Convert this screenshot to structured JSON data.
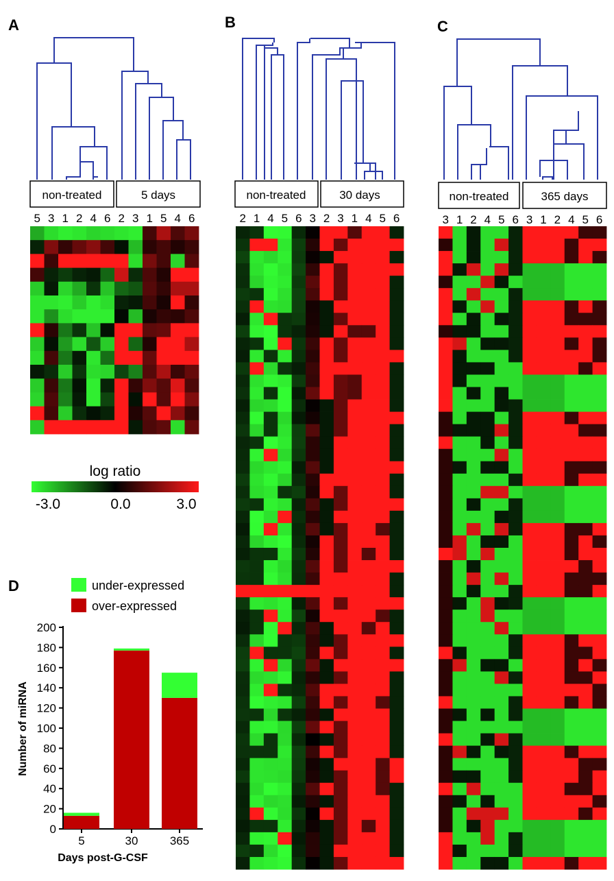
{
  "panel_letters": {
    "a": "A",
    "b": "B",
    "c": "C",
    "d": "D"
  },
  "colors": {
    "dendrogram": "#2a3aa8",
    "panel_letter": "#2a8a8c",
    "heat_low": "#33ff33",
    "heat_mid": "#000000",
    "heat_high": "#ff1a1a",
    "bar_over": "#c00000",
    "bar_under": "#33ff33"
  },
  "panelA": {
    "group_left": "non-treated",
    "group_right": "5 days",
    "columns": [
      "5",
      "3",
      "1",
      "2",
      "4",
      "6",
      "2",
      "3",
      "1",
      "5",
      "4",
      "6"
    ]
  },
  "panelB": {
    "group_left": "non-treated",
    "group_right": "30 days",
    "columns": [
      "2",
      "1",
      "4",
      "5",
      "6",
      "3",
      "2",
      "3",
      "1",
      "4",
      "5",
      "6"
    ]
  },
  "panelC": {
    "group_left": "non-treated",
    "group_right": "365 days",
    "columns": [
      "3",
      "1",
      "2",
      "4",
      "5",
      "6",
      "3",
      "1",
      "2",
      "4",
      "5",
      "6"
    ]
  },
  "legend": {
    "title": "log ratio",
    "min_label": "-3.0",
    "mid_label": "0.0",
    "max_label": "3.0",
    "min": -3.0,
    "max": 3.0
  },
  "chart_data": [
    {
      "type": "heatmap",
      "title": "A",
      "columns": [
        "5",
        "3",
        "1",
        "2",
        "4",
        "6",
        "2",
        "3",
        "1",
        "5",
        "4",
        "6"
      ],
      "value_range": [
        -3.0,
        3.0
      ],
      "values": [
        [
          -2.0,
          -2.6,
          -2.8,
          -2.7,
          -2.5,
          -2.6,
          -2.7,
          -2.8,
          0.8,
          2.0,
          0.9,
          1.4
        ],
        [
          -0.4,
          1.5,
          0.6,
          1.2,
          1.6,
          0.8,
          -0.2,
          -2.2,
          0.5,
          0.8,
          0.4,
          0.7
        ],
        [
          3.0,
          0.7,
          3.0,
          3.0,
          3.0,
          3.0,
          3.0,
          -2.6,
          1.4,
          0.8,
          -2.5,
          1.0
        ],
        [
          0.8,
          -0.4,
          -0.7,
          -0.4,
          -0.3,
          -1.2,
          2.4,
          -0.5,
          0.9,
          0.4,
          3.0,
          3.0
        ],
        [
          -2.4,
          -0.3,
          -2.5,
          -2.0,
          -0.6,
          -2.3,
          -1.2,
          -1.0,
          1.0,
          0.6,
          2.0,
          2.0
        ],
        [
          -2.7,
          -2.7,
          -2.8,
          -2.4,
          -2.8,
          -2.6,
          -0.4,
          -0.3,
          0.8,
          0.3,
          3.0,
          0.6
        ],
        [
          -2.7,
          -1.7,
          -2.6,
          -2.8,
          -2.8,
          -2.8,
          -0.1,
          -2.2,
          0.3,
          0.6,
          0.5,
          0.9
        ],
        [
          3.0,
          0.5,
          -1.4,
          -0.6,
          -2.3,
          -0.2,
          3.0,
          3.0,
          1.1,
          1.2,
          3.0,
          3.0
        ],
        [
          -2.4,
          -0.2,
          -1.8,
          -2.6,
          -1.0,
          -2.4,
          3.0,
          -1.2,
          0.4,
          3.0,
          3.0,
          2.0
        ],
        [
          -2.6,
          0.8,
          -1.4,
          -0.3,
          -2.7,
          -1.3,
          3.0,
          3.0,
          1.2,
          3.0,
          3.0,
          3.0
        ],
        [
          -0.3,
          -0.5,
          -2.4,
          -0.6,
          -2.6,
          -2.5,
          -0.8,
          -1.5,
          1.0,
          2.0,
          0.7,
          1.2
        ],
        [
          -2.4,
          0.7,
          -1.4,
          -0.2,
          -2.8,
          -0.4,
          3.0,
          0.6,
          1.5,
          1.0,
          2.6,
          0.9
        ],
        [
          -2.5,
          0.9,
          -1.5,
          -0.3,
          -2.8,
          -0.8,
          3.0,
          -0.2,
          3.0,
          1.0,
          3.0,
          1.5
        ],
        [
          3.0,
          0.8,
          -2.4,
          -0.5,
          -0.2,
          -0.4,
          3.0,
          0.4,
          1.0,
          3.0,
          1.6,
          0.7
        ],
        [
          -2.4,
          3.0,
          3.0,
          3.0,
          3.0,
          3.0,
          3.0,
          -0.3,
          0.9,
          1.1,
          -2.6,
          1.2
        ]
      ]
    },
    {
      "type": "heatmap",
      "title": "B",
      "columns": [
        "2",
        "1",
        "4",
        "5",
        "6",
        "3",
        "2",
        "3",
        "1",
        "4",
        "5",
        "6"
      ],
      "value_range": [
        -3.0,
        3.0
      ],
      "row_pattern": "non-treated samples largely green/black; 30-day samples largely red"
    },
    {
      "type": "heatmap",
      "title": "C",
      "columns": [
        "3",
        "1",
        "2",
        "4",
        "5",
        "6",
        "3",
        "1",
        "2",
        "4",
        "5",
        "6"
      ],
      "value_range": [
        -3.0,
        3.0
      ],
      "row_pattern": "non-treated samples mixed green/black; 365-day samples red or green blocks"
    },
    {
      "type": "bar",
      "title": "D",
      "stacked": true,
      "categories": [
        "5",
        "30",
        "365"
      ],
      "series": [
        {
          "name": "over-expressed",
          "values": [
            13,
            177,
            130
          ]
        },
        {
          "name": "under-expressed",
          "values": [
            3,
            2,
            25
          ]
        }
      ],
      "xlabel": "Days post-G-CSF",
      "ylabel": "Number of miRNA",
      "ylim": [
        0,
        200
      ],
      "yticks": [
        0,
        20,
        40,
        60,
        80,
        100,
        120,
        140,
        160,
        180,
        200
      ],
      "legend": [
        "under-expressed",
        "over-expressed"
      ],
      "legend_position": "top-right"
    }
  ]
}
